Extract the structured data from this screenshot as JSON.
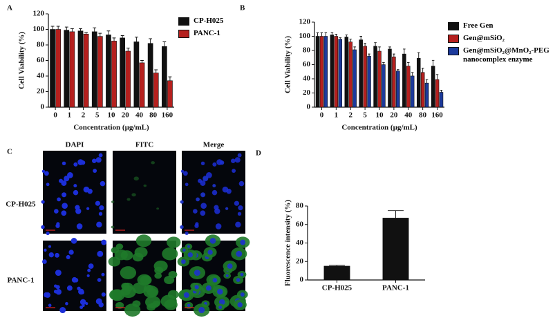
{
  "panel_labels": [
    "A",
    "B",
    "C",
    "D"
  ],
  "chart_data": [
    {
      "type": "bar",
      "ylabel": "Cell Viability (%)",
      "xlabel": "Concentration (µg/mL)",
      "categories": [
        "0",
        "1",
        "2",
        "5",
        "10",
        "20",
        "40",
        "80",
        "160"
      ],
      "series": [
        {
          "name": "CP-H025",
          "color": "#111111",
          "values": [
            100,
            99,
            98,
            97,
            93,
            89,
            84,
            82,
            78
          ],
          "errors": [
            4,
            4,
            3,
            5,
            5,
            3,
            6,
            6,
            6
          ]
        },
        {
          "name": "PANC-1",
          "color": "#b5201e",
          "values": [
            100,
            97,
            94,
            91,
            85,
            72,
            57,
            44,
            34
          ],
          "errors": [
            4,
            4,
            2,
            4,
            4,
            4,
            3,
            4,
            5
          ]
        }
      ],
      "ylim": [
        0,
        120
      ],
      "yticks": [
        0,
        20,
        40,
        60,
        80,
        100,
        120
      ]
    },
    {
      "type": "bar",
      "ylabel": "Cell Viability (%)",
      "xlabel": "Concentration (µg/mL)",
      "categories": [
        "0",
        "1",
        "2",
        "5",
        "10",
        "20",
        "40",
        "80",
        "160"
      ],
      "series": [
        {
          "name": "Free Gen",
          "color": "#111111",
          "values": [
            100,
            102,
            99,
            95,
            86,
            82,
            75,
            69,
            58
          ],
          "errors": [
            5,
            3,
            3,
            5,
            5,
            3,
            7,
            8,
            8
          ]
        },
        {
          "name": "Gen@mSiO₂",
          "color": "#b5201e",
          "values": [
            100,
            100,
            92,
            86,
            79,
            71,
            58,
            49,
            39
          ],
          "errors": [
            5,
            3,
            4,
            4,
            6,
            4,
            5,
            6,
            7
          ]
        },
        {
          "name": "Gen@mSiO₂@MnO₂-PEG nanocomplex enzyme",
          "color": "#1c3a9c",
          "values": [
            100,
            96,
            81,
            72,
            60,
            51,
            44,
            34,
            21
          ],
          "errors": [
            5,
            2,
            4,
            3,
            3,
            2,
            5,
            5,
            3
          ]
        }
      ],
      "ylim": [
        0,
        120
      ],
      "yticks": [
        0,
        20,
        40,
        60,
        80,
        100,
        120
      ]
    },
    {
      "type": "bar",
      "ylabel": "Fluorescence intensity (%)",
      "categories": [
        "CP-H025",
        "PANC-1"
      ],
      "values": [
        15,
        67
      ],
      "errors": [
        1,
        8
      ],
      "color": "#111111",
      "ylim": [
        0,
        80
      ],
      "yticks": [
        0,
        20,
        40,
        60,
        80
      ]
    }
  ],
  "microscopy": {
    "columns": [
      "DAPI",
      "FITC",
      "Merge"
    ],
    "rows": [
      "CP-H025",
      "PANC-1"
    ]
  }
}
